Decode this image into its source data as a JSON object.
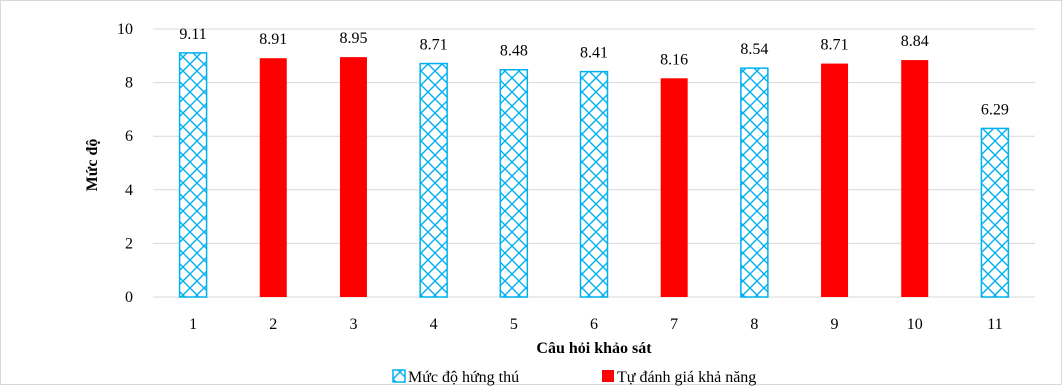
{
  "chart_data": {
    "type": "bar",
    "categories": [
      "1",
      "2",
      "3",
      "4",
      "5",
      "6",
      "7",
      "8",
      "9",
      "10",
      "11"
    ],
    "values": [
      9.11,
      8.91,
      8.95,
      8.71,
      8.48,
      8.41,
      8.16,
      8.54,
      8.71,
      8.84,
      6.29
    ],
    "value_labels": [
      "9.11",
      "8.91",
      "8.95",
      "8.71",
      "8.48",
      "8.41",
      "8.16",
      "8.54",
      "8.71",
      "8.84",
      "6.29"
    ],
    "groups": [
      "interest",
      "self",
      "self",
      "interest",
      "interest",
      "interest",
      "self",
      "interest",
      "self",
      "self",
      "interest"
    ],
    "series": [
      {
        "key": "interest",
        "name": "Mức độ hứng thú",
        "color": "#00b0f0",
        "fill": "hatched"
      },
      {
        "key": "self",
        "name": "Tự đánh giá khả năng",
        "color": "#ff0000",
        "fill": "solid"
      }
    ],
    "xlabel": "Câu hỏi khảo sát",
    "ylabel": "Mức độ",
    "ylim": [
      0,
      10
    ],
    "yticks": [
      "0",
      "2",
      "4",
      "6",
      "8",
      "10"
    ],
    "grid": true,
    "legend_position": "bottom"
  }
}
